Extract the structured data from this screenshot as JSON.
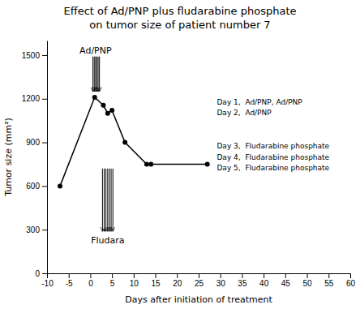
{
  "chart_data": {
    "type": "line",
    "title": "Effect of Ad/PNP plus fludarabine phosphate",
    "subtitle": "on tumor size of patient number 7",
    "xlabel": "Days after initiation of treatment",
    "ylabel": "Tumor size (mm²)",
    "x": [
      -7,
      1,
      3,
      4,
      5,
      8,
      13,
      14,
      27
    ],
    "values": [
      600,
      1210,
      1155,
      1100,
      1120,
      900,
      750,
      750,
      750
    ],
    "color": "#000000",
    "marker": "circle",
    "xlim": [
      -10,
      60
    ],
    "ylim": [
      0,
      1600
    ],
    "xticks": [
      -10,
      -5,
      0,
      5,
      10,
      15,
      20,
      25,
      30,
      35,
      40,
      45,
      50,
      55,
      60
    ],
    "yticks": [
      0,
      300,
      600,
      900,
      1200,
      1500
    ],
    "annotations": [
      {
        "text": "Ad/PNP",
        "x": 1.2,
        "y": 1500,
        "position": "above",
        "arrow_x": [
          0.6,
          0.9,
          1.2,
          1.5,
          1.8,
          2.1
        ],
        "arrow_from": 1490,
        "arrow_to": 1250
      },
      {
        "text": "Fludara",
        "x": 4.0,
        "y": 260,
        "position": "below",
        "arrow_x": [
          2.8,
          3.2,
          3.6,
          4.0,
          4.4,
          4.8,
          5.2
        ],
        "arrow_from": 720,
        "arrow_to": 290
      }
    ],
    "notes": [
      [
        "Day 1,  Ad/PNP, Ad/PNP",
        "Day 2,  Ad/PNP"
      ],
      [
        "Day 3,  Fludarabine phosphate",
        "Day 4,  Fludarabine phosphate",
        "Day 5,  Fludarabine phosphate"
      ]
    ]
  }
}
